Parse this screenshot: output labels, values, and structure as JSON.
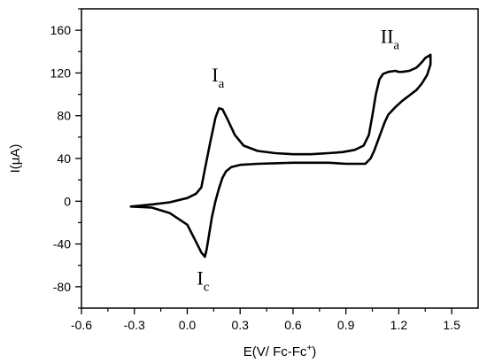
{
  "chart_data": {
    "type": "line",
    "xlabel": "E(V/ Fc-Fc",
    "xlabel_sup": "+",
    "xlabel_close": ")",
    "ylabel": "I(μA)",
    "xlim": [
      -0.6,
      1.65
    ],
    "ylim": [
      -100,
      180
    ],
    "x_ticks": [
      -0.6,
      -0.3,
      0.0,
      0.3,
      0.6,
      0.9,
      1.2,
      1.5
    ],
    "x_tick_labels": [
      "-0.6",
      "-0.3",
      "0.0",
      "0.3",
      "0.6",
      "0.9",
      "1.2",
      "1.5"
    ],
    "y_ticks": [
      -80,
      -40,
      0,
      40,
      80,
      120,
      160
    ],
    "y_tick_labels": [
      "-80",
      "-40",
      "0",
      "40",
      "80",
      "120",
      "160"
    ],
    "grid": false,
    "series": [
      {
        "x": [
          -0.32,
          -0.2,
          -0.1,
          0.0,
          0.05,
          0.08,
          0.1,
          0.13,
          0.16,
          0.18,
          0.2,
          0.23,
          0.27,
          0.32,
          0.4,
          0.5,
          0.6,
          0.7,
          0.8,
          0.88,
          0.95,
          1.0,
          1.03,
          1.05,
          1.07,
          1.09,
          1.11,
          1.14,
          1.18,
          1.2,
          1.22,
          1.26,
          1.3,
          1.33,
          1.35,
          1.37,
          1.38,
          1.38,
          1.36,
          1.33,
          1.3,
          1.26,
          1.22,
          1.18,
          1.14,
          1.12,
          1.1,
          1.08,
          1.06,
          1.04,
          1.01,
          0.95,
          0.9,
          0.8,
          0.6,
          0.4,
          0.3,
          0.25,
          0.22,
          0.2,
          0.18,
          0.16,
          0.14,
          0.12,
          0.11,
          0.1,
          0.08,
          0.05,
          0.0,
          -0.1,
          -0.2,
          -0.32
        ],
        "y": [
          -5,
          -3,
          -1,
          3,
          7,
          13,
          30,
          55,
          78,
          87,
          86,
          76,
          62,
          52,
          47,
          45,
          44,
          44,
          45,
          46,
          48,
          52,
          62,
          80,
          100,
          114,
          119,
          121,
          122,
          121,
          121,
          122,
          125,
          130,
          134,
          136,
          137,
          128,
          118,
          110,
          104,
          99,
          94,
          88,
          81,
          74,
          65,
          56,
          47,
          40,
          35,
          35,
          35,
          36,
          36,
          35,
          34,
          32,
          28,
          22,
          12,
          0,
          -15,
          -35,
          -45,
          -52,
          -48,
          -38,
          -22,
          -11,
          -6,
          -5
        ]
      }
    ],
    "annotations": [
      {
        "main": "I",
        "sub": "a",
        "x": 0.175,
        "y": 112
      },
      {
        "main": "II",
        "sub": "a",
        "x": 1.15,
        "y": 148
      },
      {
        "main": "I",
        "sub": "c",
        "x": 0.09,
        "y": -78
      }
    ]
  }
}
